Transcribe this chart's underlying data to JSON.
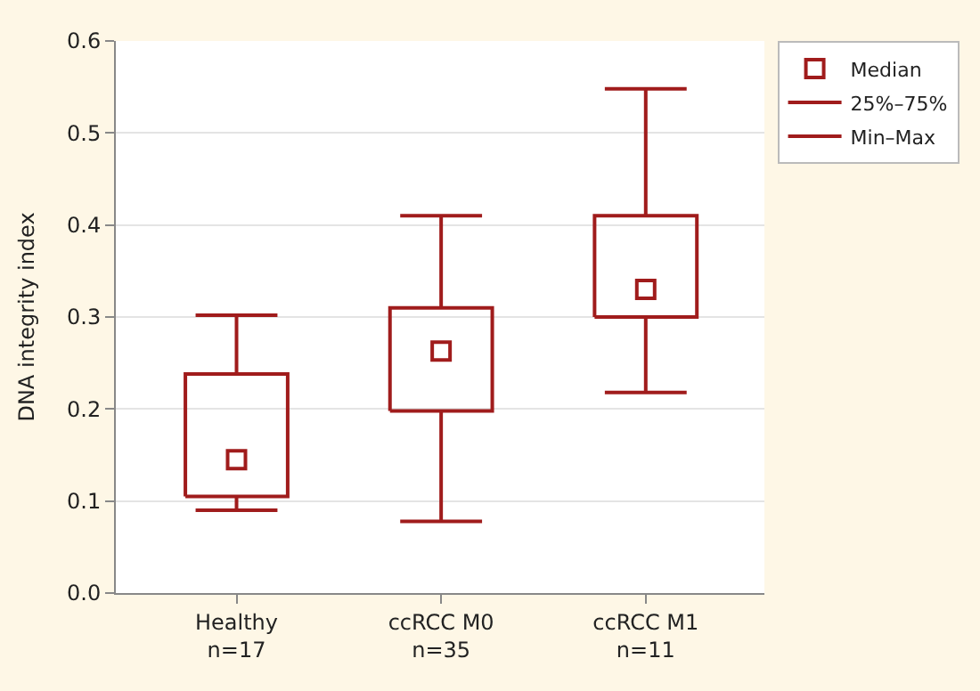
{
  "chart_data": {
    "type": "box",
    "ylabel": "DNA integrity index",
    "categories": [
      "Healthy\nn=17",
      "ccRCC M0\nn=35",
      "ccRCC M1\nn=11"
    ],
    "series": [
      {
        "name": "25%–75%",
        "type": "box",
        "color": "#a01c1c",
        "marker": "square",
        "boxes": [
          {
            "low": 0.09,
            "q1": 0.105,
            "median": 0.145,
            "q3": 0.238,
            "high": 0.302
          },
          {
            "low": 0.078,
            "q1": 0.198,
            "median": 0.263,
            "q3": 0.31,
            "high": 0.41
          },
          {
            "low": 0.218,
            "q1": 0.3,
            "median": 0.33,
            "q3": 0.41,
            "high": 0.548
          }
        ]
      }
    ],
    "annotations": [
      "Median",
      "Min–Max"
    ],
    "ylim": [
      0,
      0.6
    ],
    "yticks": [
      {
        "value": 0,
        "label": "0.0"
      },
      0.1,
      0.2,
      0.3,
      0.4,
      0.5,
      0.6
    ],
    "grid": "y",
    "legend": "top right"
  }
}
